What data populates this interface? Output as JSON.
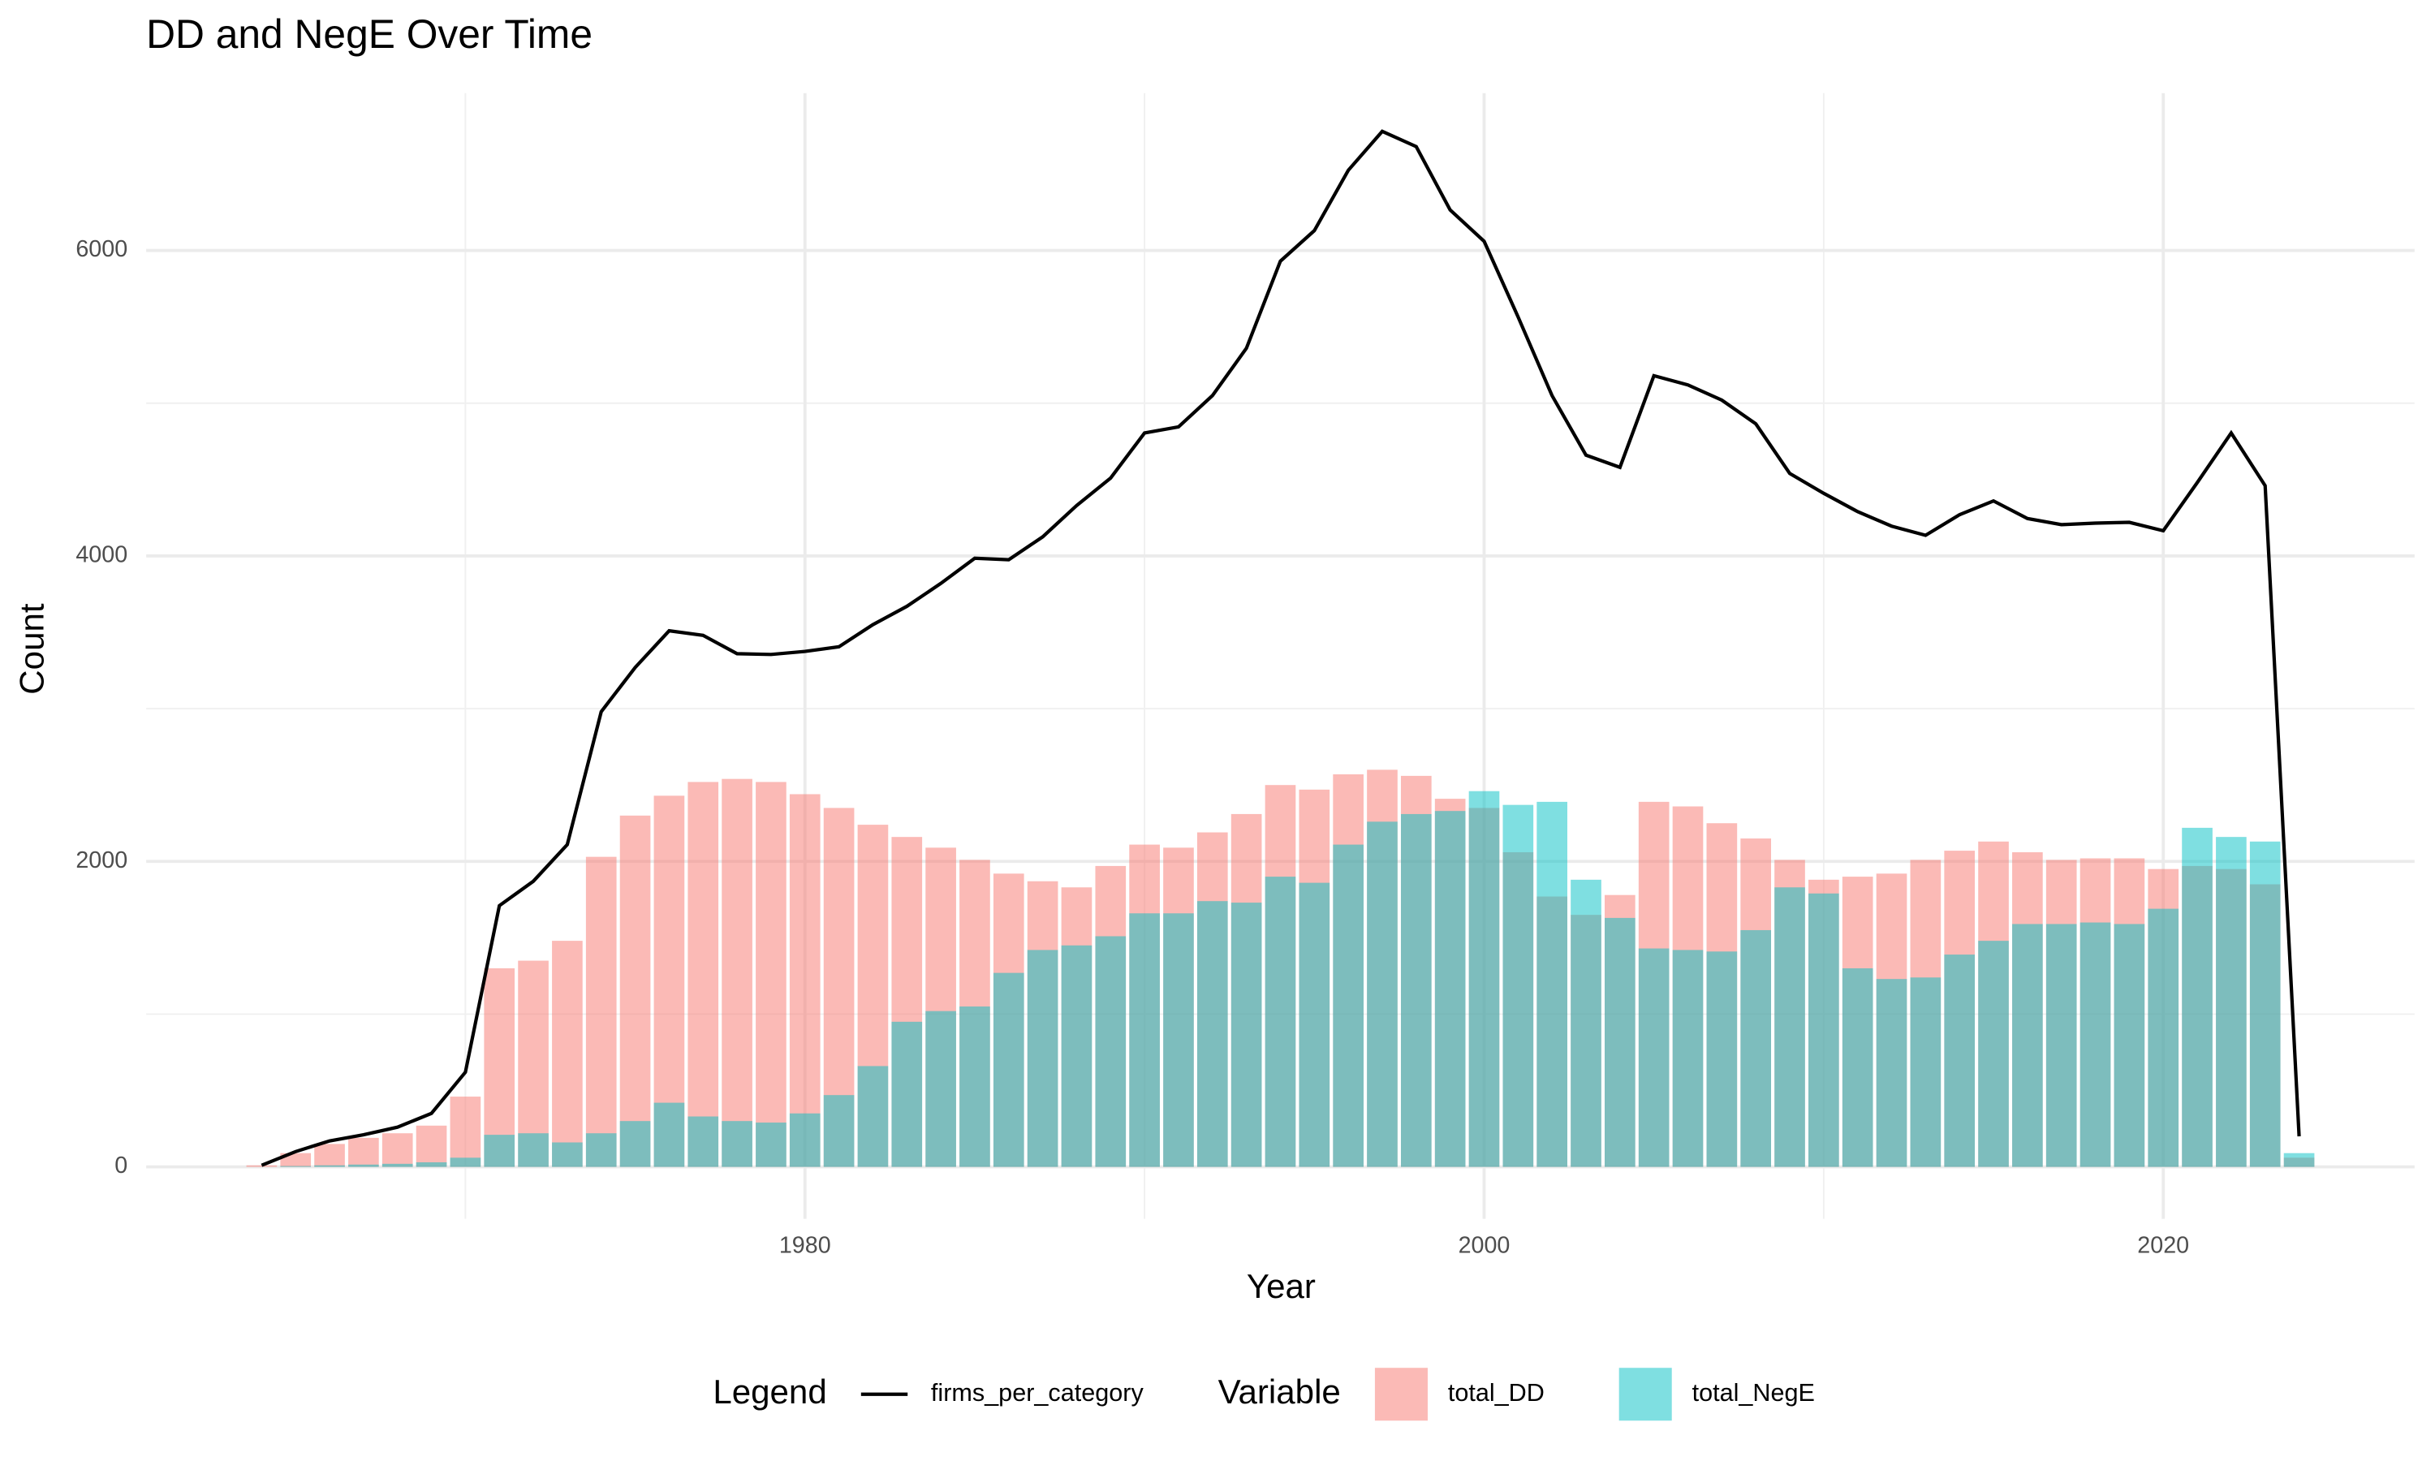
{
  "chart_data": {
    "type": "bar",
    "title": "DD and NegE Over Time",
    "xlabel": "Year",
    "ylabel": "Count",
    "x": [
      1964,
      1965,
      1966,
      1967,
      1968,
      1969,
      1970,
      1971,
      1972,
      1973,
      1974,
      1975,
      1976,
      1977,
      1978,
      1979,
      1980,
      1981,
      1982,
      1983,
      1984,
      1985,
      1986,
      1987,
      1988,
      1989,
      1990,
      1991,
      1992,
      1993,
      1994,
      1995,
      1996,
      1997,
      1998,
      1999,
      2000,
      2001,
      2002,
      2003,
      2004,
      2005,
      2006,
      2007,
      2008,
      2009,
      2010,
      2011,
      2012,
      2013,
      2014,
      2015,
      2016,
      2017,
      2018,
      2019,
      2020,
      2021,
      2022,
      2023,
      2024
    ],
    "series": [
      {
        "name": "total_DD",
        "type": "bar",
        "color": "#F8766D",
        "values": [
          10,
          90,
          150,
          190,
          220,
          270,
          460,
          1300,
          1350,
          1480,
          2030,
          2300,
          2430,
          2520,
          2540,
          2520,
          2440,
          2350,
          2240,
          2160,
          2090,
          2010,
          1920,
          1870,
          1830,
          1970,
          2110,
          2090,
          2190,
          2310,
          2500,
          2470,
          2570,
          2600,
          2560,
          2410,
          2350,
          2060,
          1770,
          1650,
          1780,
          2390,
          2360,
          2250,
          2150,
          2010,
          1880,
          1900,
          1920,
          2010,
          2070,
          2130,
          2060,
          2010,
          2020,
          2020,
          1950,
          1970,
          1950,
          1850,
          60
        ]
      },
      {
        "name": "total_NegE",
        "type": "bar",
        "color": "#00BFC4",
        "values": [
          0,
          5,
          10,
          15,
          20,
          30,
          60,
          210,
          220,
          160,
          220,
          300,
          420,
          330,
          300,
          290,
          350,
          470,
          660,
          950,
          1020,
          1050,
          1270,
          1420,
          1450,
          1510,
          1660,
          1660,
          1740,
          1730,
          1900,
          1860,
          2110,
          2260,
          2310,
          2330,
          2460,
          2370,
          2390,
          1880,
          1630,
          1430,
          1420,
          1410,
          1550,
          1830,
          1790,
          1300,
          1230,
          1240,
          1390,
          1480,
          1590,
          1590,
          1600,
          1590,
          1690,
          2220,
          2160,
          2130,
          90
        ]
      },
      {
        "name": "firms_per_category",
        "type": "line",
        "color": "#000000",
        "values": [
          10,
          100,
          170,
          210,
          260,
          350,
          620,
          1710,
          1870,
          2110,
          2980,
          3270,
          3510,
          3480,
          3360,
          3355,
          3375,
          3405,
          3550,
          3670,
          3820,
          3985,
          3975,
          4125,
          4330,
          4510,
          4805,
          4845,
          5050,
          5360,
          5930,
          6130,
          6525,
          6780,
          6680,
          6265,
          6060,
          5565,
          5050,
          4660,
          4580,
          5180,
          5120,
          5020,
          4865,
          4540,
          4410,
          4290,
          4195,
          4135,
          4270,
          4360,
          4245,
          4205,
          4215,
          4220,
          4165,
          4480,
          4805,
          4460,
          200
        ]
      }
    ],
    "legend_titles": {
      "line": "Legend",
      "bar": "Variable"
    },
    "legend_position": "bottom",
    "bar_opacity": 0.5,
    "xlim": [
      1960.6,
      2027.4
    ],
    "xticks": [
      1980,
      2000,
      2020
    ],
    "xminorticks": [
      1970,
      1990,
      2010
    ],
    "ylim": [
      -340,
      7030
    ],
    "yticks": [
      0,
      2000,
      4000,
      6000
    ],
    "yminorticks": [
      1000,
      3000,
      5000
    ],
    "grid": true
  }
}
